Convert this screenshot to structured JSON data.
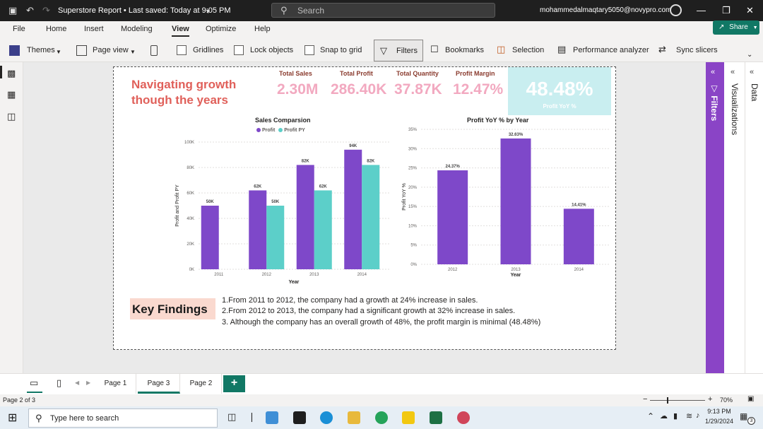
{
  "titlebar": {
    "doc_title": "Superstore Report • Last saved: Today at 9:05 PM",
    "search_placeholder": "Search",
    "user_email": "mohammedalmaqtary5050@novypro.com"
  },
  "menu": {
    "items": [
      "File",
      "Home",
      "Insert",
      "Modeling",
      "View",
      "Optimize",
      "Help"
    ],
    "active": "View",
    "share_label": "Share"
  },
  "ribbon": {
    "themes": "Themes",
    "page_view": "Page view",
    "gridlines": "Gridlines",
    "lock_objects": "Lock objects",
    "snap_to_grid": "Snap to grid",
    "filters": "Filters",
    "bookmarks": "Bookmarks",
    "selection": "Selection",
    "performance_analyzer": "Performance analyzer",
    "sync_slicers": "Sync slicers"
  },
  "report": {
    "headline": "Navigating growth though the years",
    "kpis": [
      {
        "label": "Total Sales",
        "value": "2.30M"
      },
      {
        "label": "Total Profit",
        "value": "286.40K"
      },
      {
        "label": "Total Quantity",
        "value": "37.87K"
      },
      {
        "label": "Profit Margin",
        "value": "12.47%"
      }
    ],
    "profit_yoy": {
      "value": "48.48%",
      "label": "Profit YoY %"
    },
    "key_findings_title": "Key Findings",
    "findings": [
      "1.From 2011 to 2012, the company had a growth at 24% increase in sales.",
      "2.From 2012 to 2013, the company had a significant growth at 32% increase in sales.",
      "3. Although the company has an overall growth of 48%, the profit margin is minimal (48.48%)"
    ]
  },
  "colors": {
    "profit": "#7e48c9",
    "profit_py": "#5ccfc9",
    "yoy": "#7e48c9",
    "headline": "#e0605a",
    "accent": "#117865"
  },
  "chart_data": [
    {
      "type": "bar",
      "title": "Sales Comparsion",
      "xlabel": "Year",
      "ylabel": "Profit and Profit PY",
      "categories": [
        "2011",
        "2012",
        "2013",
        "2014"
      ],
      "series": [
        {
          "name": "Profit",
          "values": [
            50,
            62,
            82,
            94
          ],
          "labels": [
            "50K",
            "62K",
            "82K",
            "94K"
          ]
        },
        {
          "name": "Profit PY",
          "values": [
            null,
            50,
            62,
            82
          ],
          "labels": [
            "",
            "50K",
            "62K",
            "82K"
          ]
        }
      ],
      "ylim": [
        0,
        100
      ],
      "yticks": [
        0,
        20,
        40,
        60,
        80,
        100
      ],
      "ytick_labels": [
        "0K",
        "20K",
        "40K",
        "60K",
        "80K",
        "100K"
      ],
      "legend": "top",
      "grid": true
    },
    {
      "type": "bar",
      "title": "Profit YoY % by Year",
      "xlabel": "Year",
      "ylabel": "Profit YoY %",
      "categories": [
        "2012",
        "2013",
        "2014"
      ],
      "values": [
        24.37,
        32.63,
        14.41
      ],
      "labels": [
        "24.37%",
        "32.63%",
        "14.41%"
      ],
      "ylim": [
        0,
        35
      ],
      "yticks": [
        0,
        5,
        10,
        15,
        20,
        25,
        30,
        35
      ],
      "ytick_labels": [
        "0%",
        "5%",
        "10%",
        "15%",
        "20%",
        "25%",
        "30%",
        "35%"
      ],
      "grid": true
    }
  ],
  "page_tabs": [
    "Page 1",
    "Page 3",
    "Page 2"
  ],
  "active_tab": "Page 3",
  "status": {
    "page_info": "Page 2 of 3",
    "zoom": "70%"
  },
  "taskbar": {
    "search_placeholder": "Type here to search",
    "time": "9:13 PM",
    "date": "1/29/2024",
    "notifications": "3"
  }
}
